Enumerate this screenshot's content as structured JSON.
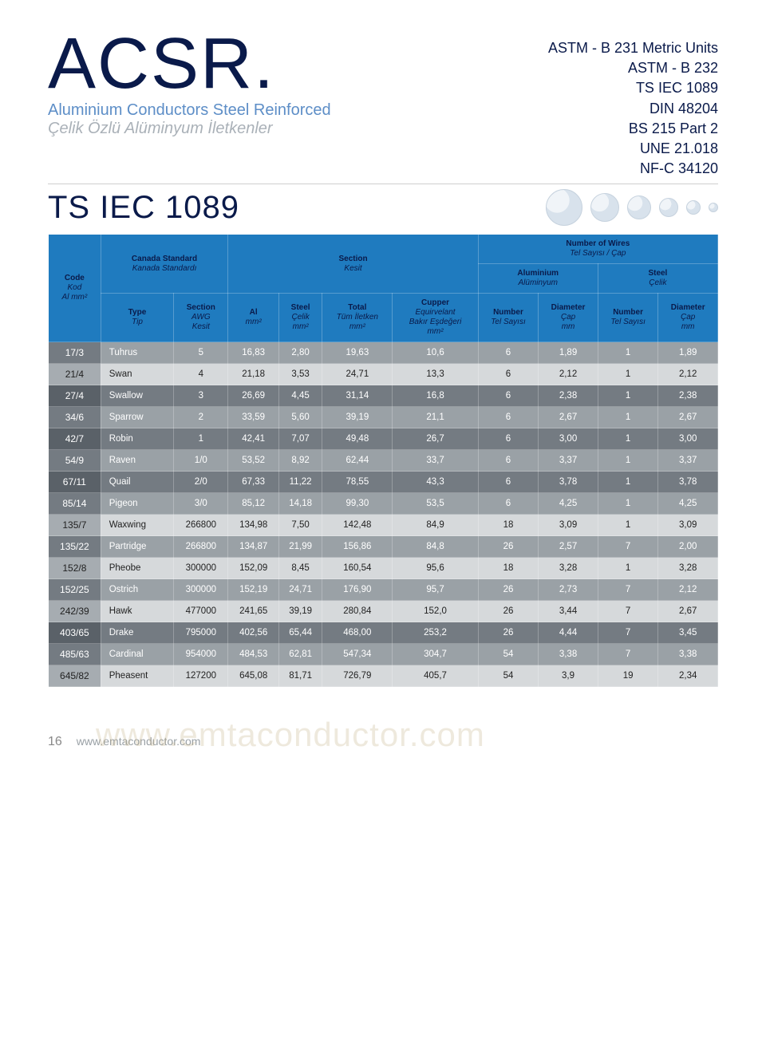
{
  "header": {
    "main_title": "ACSR.",
    "sub1": "Aluminium Conductors Steel Reinforced",
    "sub2": "Çelik Özlü Alüminyum İletkenler",
    "standards": [
      "ASTM - B 231 Metric Units",
      "ASTM - B 232",
      "TS IEC 1089",
      "DIN 48204",
      "BS 215 Part 2",
      "UNE 21.018",
      "NF-C 34120"
    ],
    "ts_label": "TS IEC 1089"
  },
  "dots": {
    "sizes": [
      46,
      36,
      30,
      24,
      18,
      12
    ]
  },
  "table": {
    "header": {
      "code": {
        "l1": "Code",
        "l2": "Kod",
        "l3": "Al mm²"
      },
      "canada": {
        "l1": "Canada Standard",
        "l2": "Kanada Standardı"
      },
      "section": {
        "l1": "Section",
        "l2": "Kesit"
      },
      "wires_top": {
        "l1": "Number of Wires",
        "l2": "Tel Sayısı / Çap"
      },
      "aluminium": {
        "l1": "Aluminium",
        "l2": "Alüminyum"
      },
      "steel": {
        "l1": "Steel",
        "l2": "Çelik"
      },
      "type": {
        "l1": "Type",
        "l2": "Tip"
      },
      "awg": {
        "l1": "Section",
        "l2": "AWG",
        "l3": "Kesit"
      },
      "al": {
        "l1": "Al",
        "l2": "mm²"
      },
      "steel_mm": {
        "l1": "Steel",
        "l2": "Çelik",
        "l3": "mm²"
      },
      "total": {
        "l1": "Total",
        "l2": "Tüm İletken",
        "l3": "mm²"
      },
      "cupper": {
        "l1": "Cupper",
        "l2": "Equirvelant",
        "l3": "Bakır Eşdeğeri",
        "l4": "mm²"
      },
      "num1": {
        "l1": "Number",
        "l2": "Tel Sayısı"
      },
      "dia1": {
        "l1": "Diameter",
        "l2": "Çap",
        "l3": "mm"
      },
      "num2": {
        "l1": "Number",
        "l2": "Tel Sayısı"
      },
      "dia2": {
        "l1": "Diameter",
        "l2": "Çap",
        "l3": "mm"
      }
    },
    "rows": [
      {
        "shade": "rM",
        "cells": [
          "17/3",
          "Tuhrus",
          "5",
          "16,83",
          "2,80",
          "19,63",
          "10,6",
          "6",
          "1,89",
          "1",
          "1,89"
        ]
      },
      {
        "shade": "rL",
        "cells": [
          "21/4",
          "Swan",
          "4",
          "21,18",
          "3,53",
          "24,71",
          "13,3",
          "6",
          "2,12",
          "1",
          "2,12"
        ]
      },
      {
        "shade": "rD",
        "cells": [
          "27/4",
          "Swallow",
          "3",
          "26,69",
          "4,45",
          "31,14",
          "16,8",
          "6",
          "2,38",
          "1",
          "2,38"
        ]
      },
      {
        "shade": "rM",
        "cells": [
          "34/6",
          "Sparrow",
          "2",
          "33,59",
          "5,60",
          "39,19",
          "21,1",
          "6",
          "2,67",
          "1",
          "2,67"
        ]
      },
      {
        "shade": "rD",
        "cells": [
          "42/7",
          "Robin",
          "1",
          "42,41",
          "7,07",
          "49,48",
          "26,7",
          "6",
          "3,00",
          "1",
          "3,00"
        ]
      },
      {
        "shade": "rM",
        "cells": [
          "54/9",
          "Raven",
          "1/0",
          "53,52",
          "8,92",
          "62,44",
          "33,7",
          "6",
          "3,37",
          "1",
          "3,37"
        ]
      },
      {
        "shade": "rD",
        "cells": [
          "67/11",
          "Quail",
          "2/0",
          "67,33",
          "11,22",
          "78,55",
          "43,3",
          "6",
          "3,78",
          "1",
          "3,78"
        ]
      },
      {
        "shade": "rM",
        "cells": [
          "85/14",
          "Pigeon",
          "3/0",
          "85,12",
          "14,18",
          "99,30",
          "53,5",
          "6",
          "4,25",
          "1",
          "4,25"
        ]
      },
      {
        "shade": "rL",
        "cells": [
          "135/7",
          "Waxwing",
          "266800",
          "134,98",
          "7,50",
          "142,48",
          "84,9",
          "18",
          "3,09",
          "1",
          "3,09"
        ]
      },
      {
        "shade": "rM",
        "cells": [
          "135/22",
          "Partridge",
          "266800",
          "134,87",
          "21,99",
          "156,86",
          "84,8",
          "26",
          "2,57",
          "7",
          "2,00"
        ]
      },
      {
        "shade": "rL",
        "cells": [
          "152/8",
          "Pheobe",
          "300000",
          "152,09",
          "8,45",
          "160,54",
          "95,6",
          "18",
          "3,28",
          "1",
          "3,28"
        ]
      },
      {
        "shade": "rM",
        "cells": [
          "152/25",
          "Ostrich",
          "300000",
          "152,19",
          "24,71",
          "176,90",
          "95,7",
          "26",
          "2,73",
          "7",
          "2,12"
        ]
      },
      {
        "shade": "rL",
        "cells": [
          "242/39",
          "Hawk",
          "477000",
          "241,65",
          "39,19",
          "280,84",
          "152,0",
          "26",
          "3,44",
          "7",
          "2,67"
        ]
      },
      {
        "shade": "rD",
        "cells": [
          "403/65",
          "Drake",
          "795000",
          "402,56",
          "65,44",
          "468,00",
          "253,2",
          "26",
          "4,44",
          "7",
          "3,45"
        ]
      },
      {
        "shade": "rM",
        "cells": [
          "485/63",
          "Cardinal",
          "954000",
          "484,53",
          "62,81",
          "547,34",
          "304,7",
          "54",
          "3,38",
          "7",
          "3,38"
        ]
      },
      {
        "shade": "rL",
        "cells": [
          "645/82",
          "Pheasent",
          "127200",
          "645,08",
          "81,71",
          "726,79",
          "405,7",
          "54",
          "3,9",
          "19",
          "2,34"
        ]
      }
    ]
  },
  "footer": {
    "page": "16",
    "site": "www.emtaconductor.com",
    "watermark": "www.emtaconductor.com"
  },
  "colors": {
    "header_bg": "#1f7bbf",
    "title": "#0a1a4a",
    "sub1": "#5d8ec7",
    "sub2": "#aab1b8"
  }
}
